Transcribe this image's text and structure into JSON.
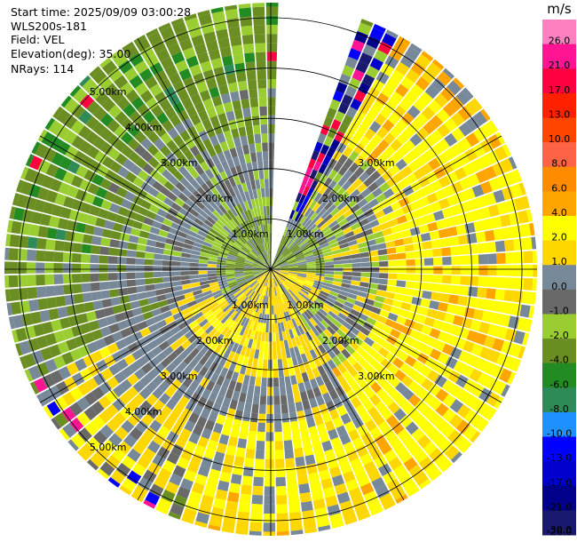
{
  "header": {
    "start_time": "Start time: 2025/09/09 03:00:28",
    "site": "WLS200s-181",
    "field": "Field: VEL",
    "elevation": "Elevation(deg): 35.00",
    "nrays": "NRays: 114"
  },
  "chart_data": {
    "type": "heatmap",
    "projection": "polar-ppi",
    "field": "VEL",
    "unit": "m/s",
    "range_max_km": 5.3,
    "range_rings_km": [
      1,
      2,
      3,
      4,
      5
    ],
    "ring_labels": [
      "1.00km",
      "2.00km",
      "3.00km",
      "4.00km",
      "5.00km"
    ],
    "gap_sector_deg": [
      0,
      20
    ],
    "color_scale": {
      "labels": [
        "26.0",
        "21.0",
        "17.0",
        "13.0",
        "10.0",
        "8.0",
        "6.0",
        "4.0",
        "2.0",
        "1.0",
        "0.0",
        "-1.0",
        "-2.0",
        "-4.0",
        "-6.0",
        "-8.0",
        "-10.0",
        "-13.0",
        "-17.0",
        "-21.0",
        "-26.0",
        "-30.0"
      ],
      "colors": [
        "#ff80c0",
        "#ff1493",
        "#ff0040",
        "#ff2000",
        "#ff4500",
        "#ff6347",
        "#ff8c00",
        "#ffa500",
        "#ffff00",
        "#ffd700",
        "#778899",
        "#696969",
        "#9acd32",
        "#6b8e23",
        "#228b22",
        "#2e8b57",
        "#1e90ff",
        "#0000ff",
        "#0000cd",
        "#00008b",
        "#191970"
      ]
    },
    "regions": [
      {
        "sector": "north-west",
        "range": "far",
        "velocity_class": "-2.0 to -4.0"
      },
      {
        "sector": "east",
        "range": "far",
        "velocity_class": "1.0 to 4.0"
      },
      {
        "sector": "south",
        "range": "mid",
        "velocity_class": "1.0 to 2.0"
      },
      {
        "sector": "center",
        "range": "near",
        "velocity_class": "-1.0 to 0.0"
      }
    ]
  }
}
